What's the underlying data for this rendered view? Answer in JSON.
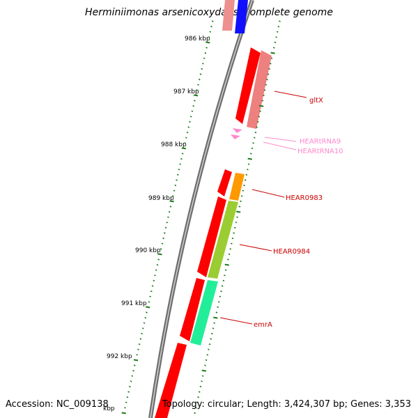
{
  "title": "Herminiimonas arsenicoxydans, complete genome",
  "accession": "Accession: NC_009138",
  "topology": "Topology: circular; Length: 3,424,307 bp; Genes: 3,353",
  "colors": {
    "backbone": "#8a8a8a",
    "tick": "#1a7a1a",
    "label_red": "#cc0000",
    "label_pink": "#ff88cc",
    "red": "#ff0000",
    "salmon": "#ee8080",
    "blue": "#0000ff",
    "orange": "#ff9900",
    "olive": "#88cc22",
    "green": "#22ee99",
    "pink": "#ff99cc"
  },
  "ticks": [
    {
      "label": "986 kbp",
      "kbp": 986
    },
    {
      "label": "987 kbp",
      "kbp": 987
    },
    {
      "label": "988 kbp",
      "kbp": 988
    },
    {
      "label": "989 kbp",
      "kbp": 989
    },
    {
      "label": "990 kbp",
      "kbp": 990
    },
    {
      "label": "991 kbp",
      "kbp": 991
    },
    {
      "label": "992 kbp",
      "kbp": 992
    },
    {
      "label": "kbp",
      "kbp": 993
    }
  ],
  "genes": [
    {
      "label": "gltX",
      "color": "label_red",
      "fill": "salmon"
    },
    {
      "label": "HEARtRNA9",
      "color": "label_pink",
      "fill": "pink"
    },
    {
      "label": "HEARtRNA10",
      "color": "label_pink",
      "fill": "pink"
    },
    {
      "label": "HEAR0983",
      "color": "label_red",
      "fill": "orange"
    },
    {
      "label": "HEAR0984",
      "color": "label_red",
      "fill": "olive"
    },
    {
      "label": "emrA",
      "color": "label_red",
      "fill": "green"
    }
  ]
}
